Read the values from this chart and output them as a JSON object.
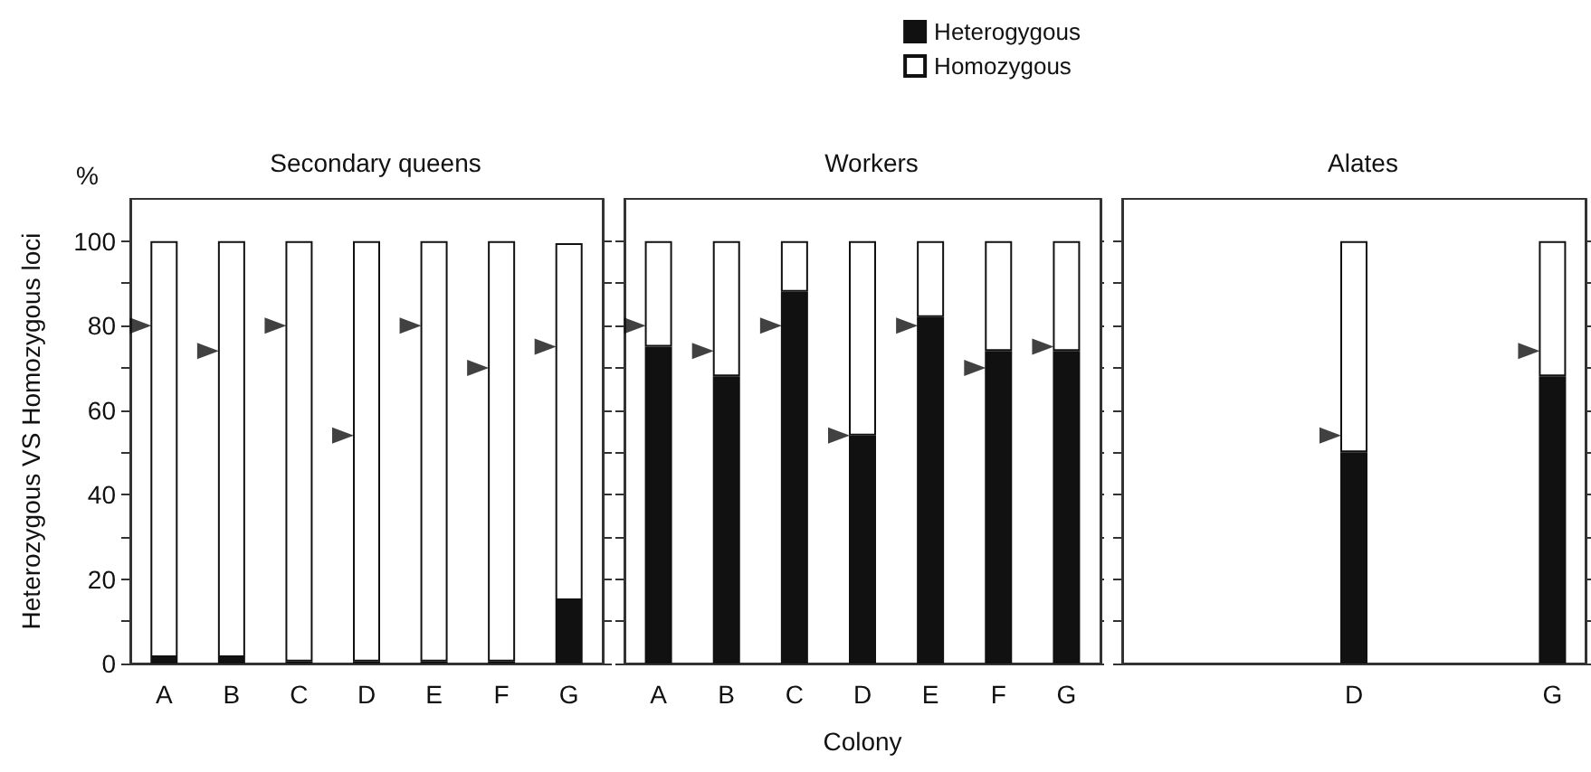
{
  "chart_data": [
    {
      "type": "bar",
      "title": "Secondary queens",
      "ylabel": "Heterozygous VS Homozygous loci",
      "annotations": [
        "%"
      ],
      "stacked": true,
      "categories": [
        "A",
        "B",
        "C",
        "D",
        "E",
        "F",
        "G"
      ],
      "series": [
        {
          "color": "#111111",
          "values": [
            1.5,
            1.5,
            0.5,
            0.5,
            0.5,
            0.5,
            15
          ]
        },
        {
          "color": "#ffffff",
          "values": [
            98.5,
            98.5,
            99.5,
            99.5,
            99.5,
            99.5,
            84.5
          ]
        },
        {
          "type": "scatter",
          "marker": "triangle",
          "color": "#111111",
          "x": [
            "A",
            "B",
            "C",
            "D",
            "E",
            "F",
            "G"
          ],
          "values": [
            80,
            74,
            80,
            54,
            80,
            70,
            75
          ]
        }
      ],
      "ylim": [
        0,
        110
      ],
      "yticks": [
        0,
        {
          "value": 10,
          "label": null
        },
        20,
        {
          "value": 30,
          "label": null
        },
        40,
        {
          "value": 50,
          "label": null
        },
        60,
        {
          "value": 70,
          "label": null
        },
        80,
        {
          "value": 90,
          "label": null
        },
        100
      ]
    },
    {
      "type": "bar",
      "title": "Workers",
      "xlabel": "Colony",
      "stacked": true,
      "legend": "top right",
      "tick_labels": "x",
      "categories": [
        "A",
        "B",
        "C",
        "D",
        "E",
        "F",
        "G"
      ],
      "series": [
        {
          "name": "Heterogygous",
          "color": "#111111",
          "values": [
            75,
            68,
            88,
            54,
            82,
            74,
            74
          ]
        },
        {
          "name": "Homozygous",
          "color": "#ffffff",
          "values": [
            25,
            32,
            12,
            46,
            18,
            26,
            26
          ]
        },
        {
          "type": "scatter",
          "marker": "triangle",
          "color": "#111111",
          "x": [
            "A",
            "B",
            "C",
            "D",
            "E",
            "F",
            "G"
          ],
          "values": [
            80,
            74,
            80,
            54,
            80,
            70,
            75
          ]
        }
      ],
      "ylim": [
        0,
        110
      ],
      "yticks": [
        {
          "value": 0,
          "label": null
        },
        {
          "value": 10,
          "label": null
        },
        {
          "value": 20,
          "label": null
        },
        {
          "value": 30,
          "label": null
        },
        {
          "value": 40,
          "label": null
        },
        {
          "value": 50,
          "label": null
        },
        {
          "value": 60,
          "label": null
        },
        {
          "value": 70,
          "label": null
        },
        {
          "value": 80,
          "label": null
        },
        {
          "value": 90,
          "label": null
        },
        {
          "value": 100,
          "label": null
        }
      ]
    },
    {
      "type": "bar",
      "title": "Alates",
      "stacked": true,
      "tick_labels": "x",
      "categories": [
        null,
        null,
        null,
        "D",
        null,
        null,
        "G"
      ],
      "series": [
        {
          "color": "#111111",
          "values": [
            null,
            null,
            null,
            50,
            null,
            null,
            68
          ]
        },
        {
          "color": "#ffffff",
          "values": [
            null,
            null,
            null,
            50,
            null,
            null,
            32
          ]
        },
        {
          "type": "scatter",
          "marker": "triangle",
          "color": "#111111",
          "x": [
            "D",
            "G"
          ],
          "values": [
            54,
            74
          ]
        }
      ],
      "ylim": [
        0,
        110
      ],
      "yticks": [
        {
          "value": 0,
          "label": null
        },
        {
          "value": 10,
          "label": null
        },
        {
          "value": 20,
          "label": null
        },
        {
          "value": 30,
          "label": null
        },
        {
          "value": 40,
          "label": null
        },
        {
          "value": 50,
          "label": null
        },
        {
          "value": 60,
          "label": null
        },
        {
          "value": 70,
          "label": null
        },
        {
          "value": 80,
          "label": null
        },
        {
          "value": 90,
          "label": null
        },
        {
          "value": 100,
          "label": null
        }
      ]
    }
  ]
}
